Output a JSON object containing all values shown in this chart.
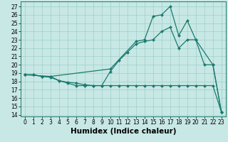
{
  "xlabel": "Humidex (Indice chaleur)",
  "bg_color": "#c8e8e5",
  "line_color": "#1a7a6e",
  "xlim": [
    -0.5,
    23.5
  ],
  "ylim": [
    13.8,
    27.6
  ],
  "xticks": [
    0,
    1,
    2,
    3,
    4,
    5,
    6,
    7,
    8,
    9,
    10,
    11,
    12,
    13,
    14,
    15,
    16,
    17,
    18,
    19,
    20,
    21,
    22,
    23
  ],
  "yticks": [
    14,
    15,
    16,
    17,
    18,
    19,
    20,
    21,
    22,
    23,
    24,
    25,
    26,
    27
  ],
  "s1_x": [
    0,
    1,
    2,
    3,
    4,
    5,
    6,
    7,
    8,
    9,
    10,
    11,
    12,
    13,
    14,
    15,
    16,
    17,
    18,
    19,
    20,
    21,
    22,
    23
  ],
  "s1_y": [
    18.8,
    18.8,
    18.6,
    18.6,
    18.1,
    17.8,
    17.5,
    17.5,
    17.5,
    17.5,
    17.5,
    17.5,
    17.5,
    17.5,
    17.5,
    17.5,
    17.5,
    17.5,
    17.5,
    17.5,
    17.5,
    17.5,
    17.5,
    14.3
  ],
  "s2_x": [
    0,
    1,
    2,
    3,
    4,
    5,
    6,
    7,
    8,
    9,
    10,
    11,
    12,
    13,
    14,
    15,
    16,
    17,
    18,
    19,
    20,
    21,
    22,
    23
  ],
  "s2_y": [
    18.8,
    18.8,
    18.6,
    18.5,
    18.1,
    17.9,
    17.8,
    17.6,
    17.5,
    17.5,
    19.2,
    20.5,
    21.5,
    22.5,
    22.8,
    23.0,
    24.0,
    24.5,
    22.0,
    23.0,
    23.0,
    20.0,
    20.0,
    14.3
  ],
  "s3_x": [
    0,
    3,
    10,
    13,
    14,
    15,
    16,
    17,
    18,
    19,
    20,
    22,
    23
  ],
  "s3_y": [
    18.8,
    18.6,
    19.5,
    22.8,
    23.0,
    25.8,
    26.0,
    27.0,
    23.5,
    25.3,
    23.0,
    20.0,
    14.3
  ],
  "tick_fontsize": 5.5,
  "label_fontsize": 7.5
}
